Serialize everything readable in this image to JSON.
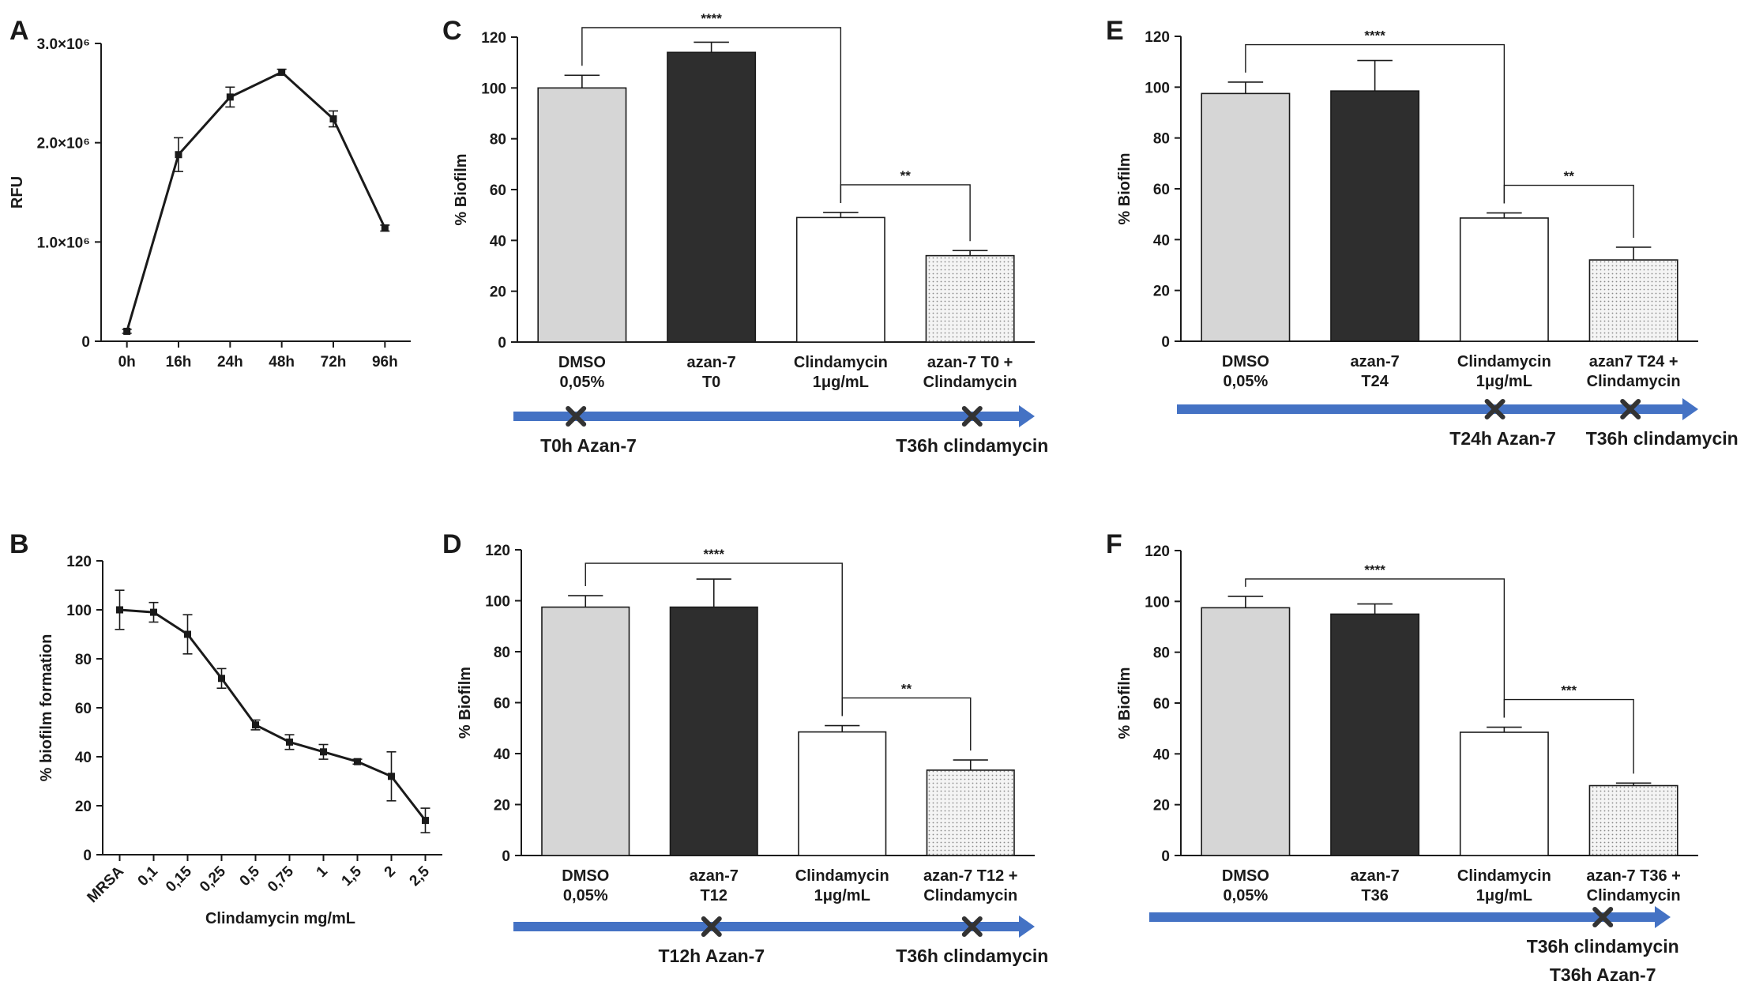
{
  "colors": {
    "arrow": "#4472c4",
    "dmso": "#d6d6d6",
    "azan": "#2e2e2e",
    "clinda": "#ffffff",
    "combo": "#efefef"
  },
  "chart_data": [
    {
      "panel": "A",
      "type": "line",
      "categories": [
        "0h",
        "16h",
        "24h",
        "48h",
        "72h",
        "96h"
      ],
      "values": [
        100000,
        1880000,
        2460000,
        2710000,
        2240000,
        1140000
      ],
      "errors": [
        20000,
        170000,
        100000,
        30000,
        80000,
        30000
      ],
      "ylabel": "RFU",
      "ylim": [
        0,
        3000000
      ],
      "yticks": [
        0,
        1000000,
        2000000,
        3000000
      ],
      "ytick_labels": [
        "0",
        "1.0×10⁶",
        "2.0×10⁶",
        "3.0×10⁶"
      ]
    },
    {
      "panel": "B",
      "type": "line",
      "categories": [
        "MRSA",
        "0,1",
        "0,15",
        "0,25",
        "0,5",
        "0,75",
        "1",
        "1,5",
        "2",
        "2,5"
      ],
      "values": [
        100,
        99,
        90,
        72,
        53,
        46,
        42,
        38,
        32,
        14
      ],
      "errors": [
        8,
        4,
        8,
        4,
        2,
        3,
        3,
        1,
        10,
        5
      ],
      "xlabel": "Clindamycin mg/mL",
      "ylabel": "% biofilm formation",
      "ylim": [
        0,
        120
      ],
      "yticks": [
        0,
        20,
        40,
        60,
        80,
        100,
        120
      ]
    },
    {
      "panel": "C",
      "type": "bar",
      "categories": [
        [
          "DMSO",
          "0,05%"
        ],
        [
          "azan-7",
          "T0"
        ],
        [
          "Clindamycin",
          "1μg/mL"
        ],
        [
          "azan-7  T0 +",
          "Clindamycin"
        ]
      ],
      "values": [
        100,
        114,
        49,
        34
      ],
      "errors": [
        5,
        4,
        2,
        2
      ],
      "ylabel": "% Biofilm",
      "ylim": [
        0,
        120
      ],
      "yticks": [
        0,
        20,
        40,
        60,
        80,
        100,
        120
      ],
      "significance": [
        {
          "from": 0,
          "to": 2,
          "label": "****"
        },
        {
          "from": 2,
          "to": 3,
          "label": "**"
        }
      ],
      "timeline": [
        {
          "label": "T0h Azan-7",
          "marker": 0.12
        },
        {
          "label": "T36h clindamycin",
          "marker": 0.88
        }
      ]
    },
    {
      "panel": "D",
      "type": "bar",
      "categories": [
        [
          "DMSO",
          "0,05%"
        ],
        [
          "azan-7",
          "T12"
        ],
        [
          "Clindamycin",
          "1μg/mL"
        ],
        [
          "azan-7  T12 +",
          "Clindamycin"
        ]
      ],
      "values": [
        97.5,
        97.5,
        48.5,
        33.5
      ],
      "errors": [
        4.5,
        11,
        2.5,
        4
      ],
      "ylabel": "% Biofilm",
      "ylim": [
        0,
        120
      ],
      "yticks": [
        0,
        20,
        40,
        60,
        80,
        100,
        120
      ],
      "significance": [
        {
          "from": 0,
          "to": 2,
          "label": "****"
        },
        {
          "from": 2,
          "to": 3,
          "label": "**"
        }
      ],
      "timeline": [
        {
          "label": "T12h Azan-7",
          "marker": 0.38
        },
        {
          "label": "T36h clindamycin",
          "marker": 0.88
        }
      ]
    },
    {
      "panel": "E",
      "type": "bar",
      "categories": [
        [
          "DMSO",
          "0,05%"
        ],
        [
          "azan-7",
          "T24"
        ],
        [
          "Clindamycin",
          "1μg/mL"
        ],
        [
          "azan7  T24 +",
          "Clindamycin"
        ]
      ],
      "values": [
        97.5,
        98.5,
        48.5,
        32
      ],
      "errors": [
        4.5,
        12,
        2,
        5
      ],
      "ylabel": "% Biofilm",
      "ylim": [
        0,
        120
      ],
      "yticks": [
        0,
        20,
        40,
        60,
        80,
        100,
        120
      ],
      "significance": [
        {
          "from": 0,
          "to": 2,
          "label": "****"
        },
        {
          "from": 2,
          "to": 3,
          "label": "**"
        }
      ],
      "timeline": [
        {
          "label": "T24h Azan-7",
          "marker": 0.61
        },
        {
          "label": "T36h clindamycin",
          "marker": 0.87
        }
      ]
    },
    {
      "panel": "F",
      "type": "bar",
      "categories": [
        [
          "DMSO",
          "0,05%"
        ],
        [
          "azan-7",
          "T36"
        ],
        [
          "Clindamycin",
          "1μg/mL"
        ],
        [
          "azan-7  T36 +",
          "Clindamycin"
        ]
      ],
      "values": [
        97.5,
        95,
        48.5,
        27.5
      ],
      "errors": [
        4.5,
        4,
        2,
        1
      ],
      "ylabel": "% Biofilm",
      "ylim": [
        0,
        120
      ],
      "yticks": [
        0,
        20,
        40,
        60,
        80,
        100,
        120
      ],
      "significance": [
        {
          "from": 0,
          "to": 2,
          "label": "****"
        },
        {
          "from": 2,
          "to": 3,
          "label": "***"
        }
      ],
      "timeline": [
        {
          "label": "T36h clindamycin",
          "marker": 0.87
        },
        {
          "label": "T36h Azan-7",
          "marker": 0.87
        }
      ]
    }
  ]
}
